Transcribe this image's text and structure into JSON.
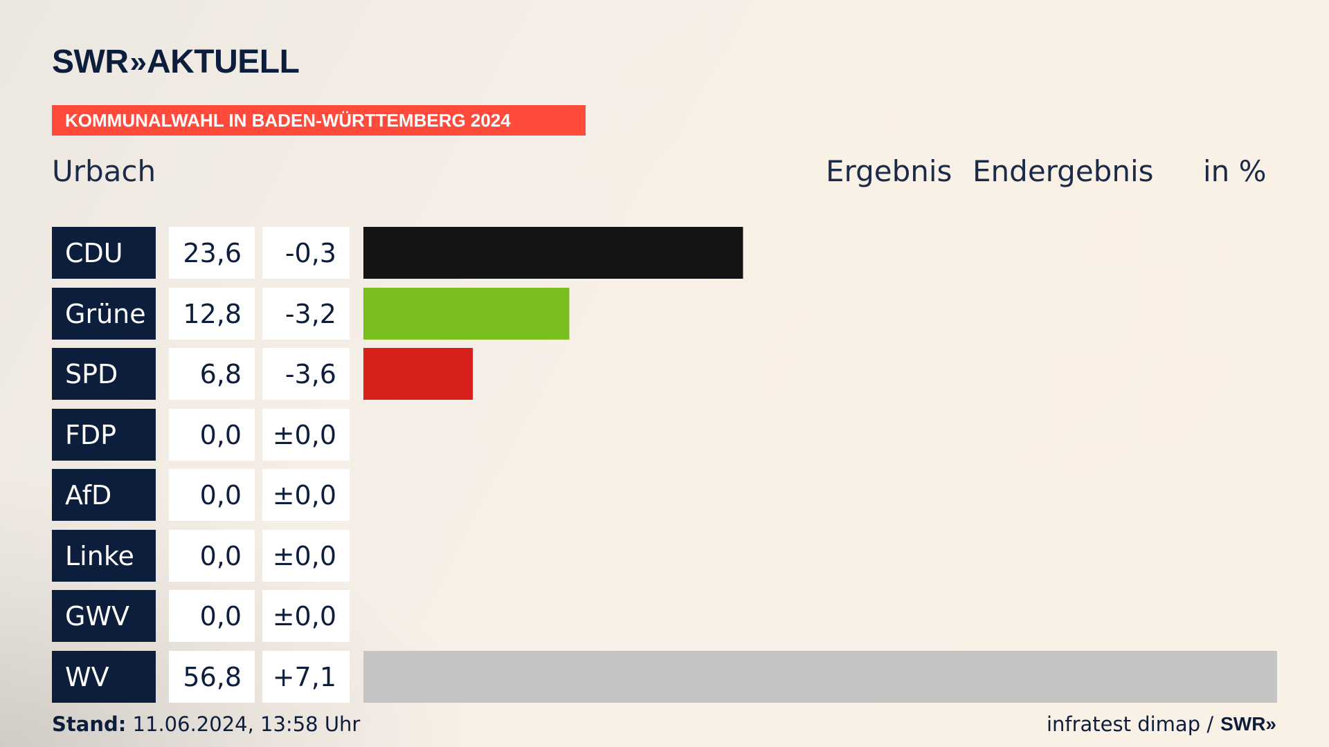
{
  "brand": {
    "logo_text": "SWR",
    "logo_chevrons": "»",
    "logo_suffix": "AKTUELL"
  },
  "banner": {
    "text": "KOMMUNALWAHL IN BADEN-WÜRTTEMBERG 2024",
    "color": "#ff4b3b"
  },
  "header": {
    "place": "Urbach",
    "result_label": "Ergebnis",
    "status_label": "Endergebnis",
    "unit_label": "in %"
  },
  "chart_data": {
    "type": "bar",
    "orientation": "horizontal",
    "title": "Urbach",
    "categories": [
      "CDU",
      "Grüne",
      "SPD",
      "FDP",
      "AfD",
      "Linke",
      "GWV",
      "WV"
    ],
    "values": [
      23.6,
      12.8,
      6.8,
      0.0,
      0.0,
      0.0,
      0.0,
      56.8
    ],
    "value_labels": [
      "23,6",
      "12,8",
      "6,8",
      "0,0",
      "0,0",
      "0,0",
      "0,0",
      "56,8"
    ],
    "changes": [
      -0.3,
      -3.2,
      -3.6,
      0.0,
      0.0,
      0.0,
      0.0,
      7.1
    ],
    "change_labels": [
      "-0,3",
      "-3,2",
      "-3,6",
      "±0,0",
      "±0,0",
      "±0,0",
      "±0,0",
      "+7,1"
    ],
    "colors": [
      "#141414",
      "#78be1e",
      "#d8201c",
      "#ffe000",
      "#009ee0",
      "#be3075",
      "#8a8a8a",
      "#c4c4c4"
    ],
    "unit": "in %",
    "xlim": [
      0,
      56.8
    ]
  },
  "footer": {
    "stand_label": "Stand:",
    "stand_value": "11.06.2024, 13:58 Uhr",
    "source": "infratest dimap /",
    "source_brand": "SWR",
    "source_brand_chevrons": "»"
  }
}
